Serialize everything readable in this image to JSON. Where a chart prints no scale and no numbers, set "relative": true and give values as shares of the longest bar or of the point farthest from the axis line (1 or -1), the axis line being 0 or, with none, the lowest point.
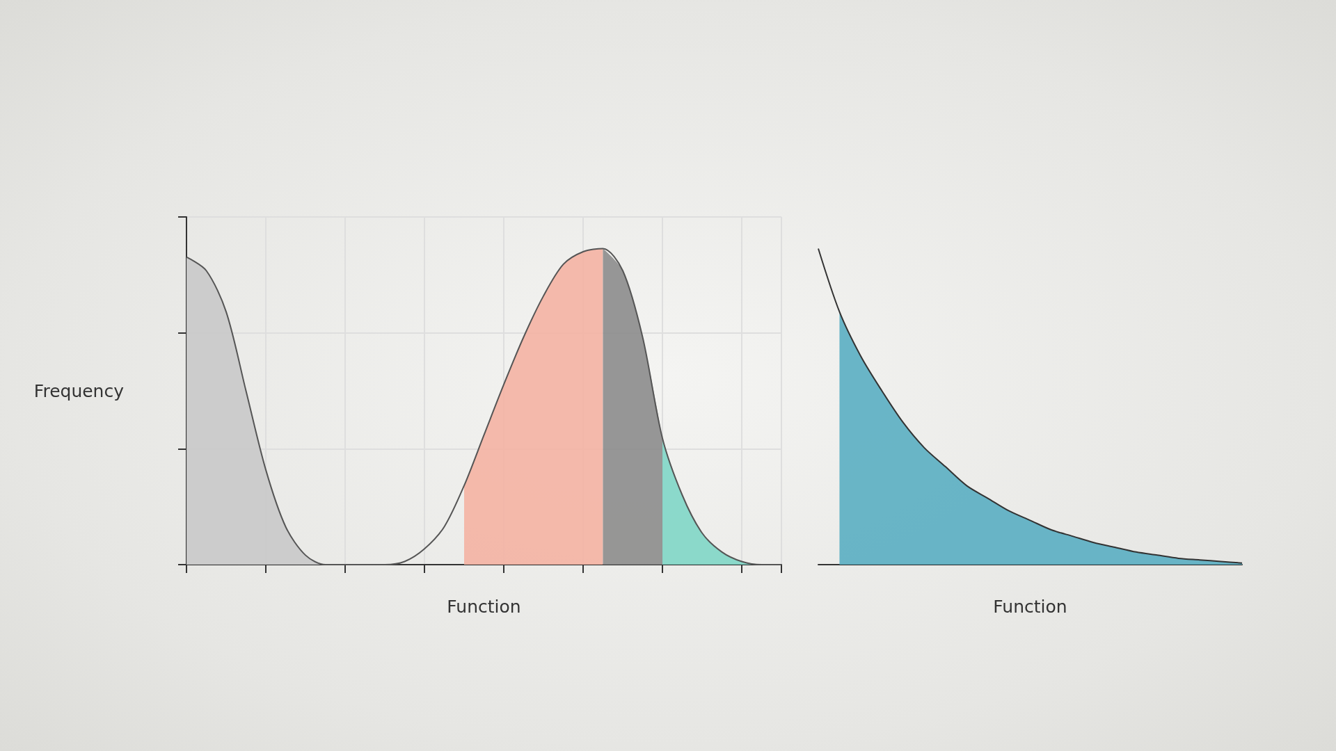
{
  "chart_data": [
    {
      "type": "area",
      "xlabel": "Function",
      "ylabel": "Frequency",
      "relative": true,
      "grid": true,
      "categories": [
        null,
        null,
        null,
        null,
        null,
        null,
        null,
        null,
        null,
        null,
        null,
        null,
        null,
        null,
        null,
        null,
        null,
        null,
        null,
        null,
        null,
        null,
        null,
        null,
        null,
        null,
        null,
        null,
        null,
        null,
        null
      ],
      "series": [
        {
          "color": "#c9c9c9",
          "values": [
            0.973,
            0.93,
            0.8,
            0.55,
            0.3,
            0.12,
            0.03,
            0,
            null,
            null,
            null,
            null,
            null,
            null,
            null,
            null,
            null,
            null,
            null,
            null,
            null,
            null,
            null,
            null,
            null,
            null,
            null,
            null,
            null,
            null,
            null
          ]
        },
        {
          "color": "#f4b2a3",
          "values": [
            null,
            null,
            null,
            null,
            null,
            null,
            null,
            null,
            null,
            null,
            null,
            null,
            null,
            null,
            0.25,
            0.41,
            0.57,
            0.72,
            0.85,
            0.95,
            0.99,
            1.0,
            null,
            null,
            null,
            null,
            null,
            null,
            null,
            null,
            null
          ]
        },
        {
          "color": "#8c8c8c",
          "values": [
            null,
            null,
            null,
            null,
            null,
            null,
            null,
            null,
            null,
            null,
            null,
            null,
            null,
            null,
            null,
            null,
            null,
            null,
            null,
            null,
            null,
            1.0,
            0.93,
            0.72,
            0.4,
            null,
            null,
            null,
            null,
            null,
            null
          ]
        },
        {
          "color": "#7fd6c6",
          "values": [
            null,
            null,
            null,
            null,
            null,
            null,
            null,
            null,
            null,
            null,
            null,
            null,
            null,
            null,
            null,
            null,
            null,
            null,
            null,
            null,
            null,
            null,
            null,
            null,
            0.4,
            0.22,
            0.1,
            0.04,
            0.01,
            0,
            null
          ]
        },
        {
          "type": "line",
          "color": "#555555",
          "values": [
            0.973,
            0.93,
            0.8,
            0.55,
            0.3,
            0.12,
            0.03,
            0,
            0,
            0,
            0,
            0.01,
            0.05,
            0.12,
            0.25,
            0.41,
            0.57,
            0.72,
            0.85,
            0.95,
            0.99,
            1.0,
            0.93,
            0.72,
            0.4,
            0.22,
            0.1,
            0.04,
            0.01,
            0,
            0
          ]
        }
      ]
    },
    {
      "type": "area",
      "xlabel": "Function",
      "relative": true,
      "categories": [
        null,
        null,
        null,
        null,
        null,
        null,
        null,
        null,
        null,
        null,
        null,
        null,
        null,
        null,
        null,
        null,
        null,
        null,
        null,
        null,
        null
      ],
      "series": [
        {
          "color": "#5aaec2",
          "values": [
            null,
            0.8,
            0.66,
            0.55,
            0.45,
            0.37,
            0.31,
            0.25,
            0.21,
            0.17,
            0.14,
            0.11,
            0.09,
            0.07,
            0.055,
            0.04,
            0.03,
            0.02,
            0.015,
            0.01,
            0.005
          ]
        },
        {
          "type": "line",
          "color": "#333333",
          "values": [
            1.0,
            0.8,
            0.66,
            0.55,
            0.45,
            0.37,
            0.31,
            0.25,
            0.21,
            0.17,
            0.14,
            0.11,
            0.09,
            0.07,
            0.055,
            0.04,
            0.03,
            0.02,
            0.015,
            0.01,
            0.005
          ]
        }
      ]
    }
  ]
}
